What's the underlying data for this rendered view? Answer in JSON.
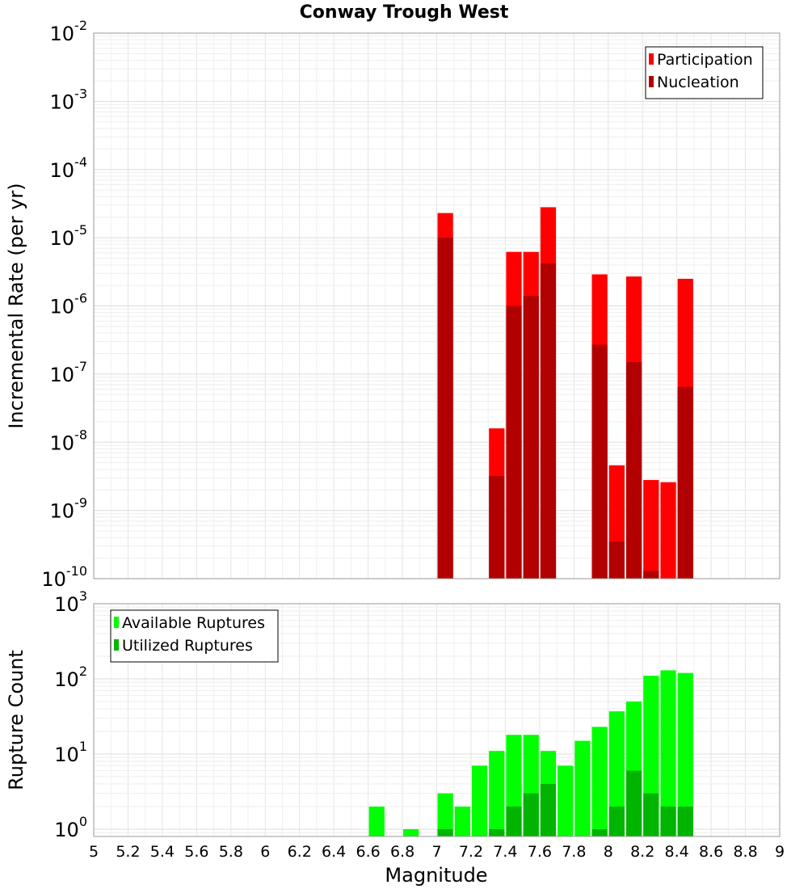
{
  "chart_data": {
    "title": "Conway Trough West",
    "xlabel": "Magnitude",
    "xlim": [
      5,
      9
    ],
    "x_ticks": [
      5,
      5.2,
      5.4,
      5.6,
      5.8,
      6,
      6.2,
      6.4,
      6.6,
      6.8,
      7,
      7.2,
      7.4,
      7.6,
      7.8,
      8,
      8.2,
      8.4,
      8.6,
      8.8,
      9
    ],
    "x_tick_labels": [
      "5",
      "5.2",
      "5.4",
      "5.6",
      "5.8",
      "6",
      "6.2",
      "6.4",
      "6.6",
      "6.8",
      "7",
      "7.2",
      "7.4",
      "7.6",
      "7.8",
      "8",
      "8.2",
      "8.4",
      "8.6",
      "8.8",
      "9"
    ],
    "bin_width": 0.1,
    "panels": [
      {
        "type": "bar",
        "ylabel": "Incremental Rate (per yr)",
        "yscale": "log",
        "ylim": [
          1e-10,
          0.01
        ],
        "y_tick_exponents": [
          -10,
          -9,
          -8,
          -7,
          -6,
          -5,
          -4,
          -3,
          -2
        ],
        "legend_position": "top-right",
        "grid": true,
        "series": [
          {
            "name": "Participation",
            "color": "#ff0000",
            "x": [
              7.05,
              7.35,
              7.45,
              7.55,
              7.65,
              7.95,
              8.05,
              8.15,
              8.25,
              8.35,
              8.45
            ],
            "values": [
              2.3e-05,
              1.6e-08,
              6.2e-06,
              6.2e-06,
              2.8e-05,
              2.9e-06,
              4.6e-09,
              2.7e-06,
              2.8e-09,
              2.6e-09,
              2.5e-06
            ]
          },
          {
            "name": "Nucleation",
            "color": "#b20000",
            "x": [
              7.05,
              7.35,
              7.45,
              7.55,
              7.65,
              7.95,
              8.05,
              8.15,
              8.25,
              8.45
            ],
            "values": [
              1e-05,
              3.2e-09,
              1e-06,
              1.4e-06,
              4.2e-06,
              2.7e-07,
              3.5e-10,
              1.5e-07,
              1.3e-10,
              6.5e-08
            ]
          }
        ]
      },
      {
        "type": "bar",
        "ylabel": "Rupture Count",
        "yscale": "log",
        "ylim": [
          0.8,
          1000
        ],
        "y_tick_exponents": [
          0,
          1,
          2,
          3
        ],
        "legend_position": "top-left",
        "grid": true,
        "series": [
          {
            "name": "Available Ruptures",
            "color": "#00ff00",
            "x": [
              6.65,
              6.85,
              7.05,
              7.15,
              7.25,
              7.35,
              7.45,
              7.55,
              7.65,
              7.75,
              7.85,
              7.95,
              8.05,
              8.15,
              8.25,
              8.35,
              8.45
            ],
            "values": [
              2,
              1,
              3,
              2,
              7,
              11,
              18,
              18,
              11,
              7,
              15,
              23,
              37,
              50,
              110,
              130,
              120
            ]
          },
          {
            "name": "Utilized Ruptures",
            "color": "#00b400",
            "x": [
              7.05,
              7.35,
              7.45,
              7.55,
              7.65,
              7.95,
              8.05,
              8.15,
              8.25,
              8.35,
              8.45
            ],
            "values": [
              1,
              1,
              2,
              3,
              4,
              1,
              2,
              6,
              3,
              2,
              2
            ]
          }
        ]
      }
    ]
  }
}
